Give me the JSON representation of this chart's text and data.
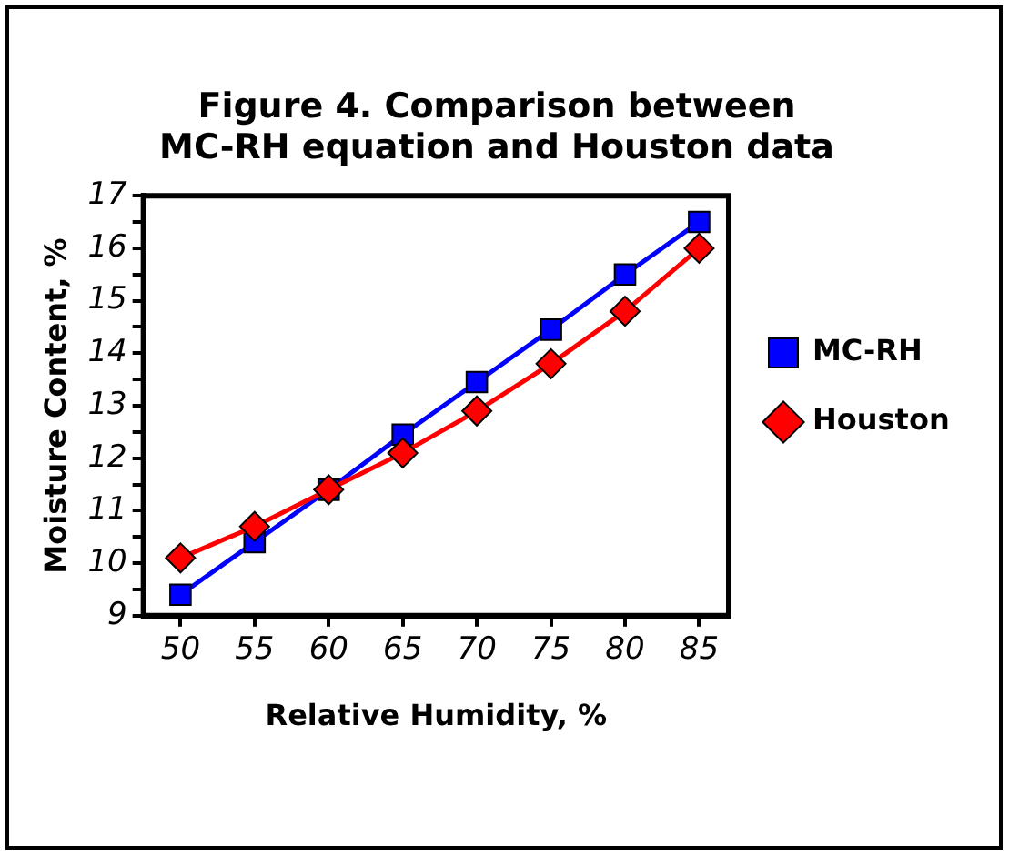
{
  "chart_data": {
    "type": "line",
    "title": "Figure 4. Comparison between MC-RH equation and Houston data",
    "xlabel": "Relative Humidity, %",
    "ylabel": "Moisture Content, %",
    "x": [
      50,
      55,
      60,
      65,
      70,
      75,
      80,
      85
    ],
    "series": [
      {
        "name": "MC-RH",
        "color": "#0000ff",
        "marker": "square",
        "values": [
          9.4,
          10.4,
          11.4,
          12.45,
          13.45,
          14.45,
          15.5,
          16.5
        ]
      },
      {
        "name": "Houston",
        "color": "#ff0000",
        "marker": "diamond",
        "values": [
          10.1,
          10.7,
          11.4,
          12.1,
          12.9,
          13.8,
          14.8,
          16.0
        ]
      }
    ],
    "xlim": [
      47.5,
      87
    ],
    "xticks": [
      50,
      55,
      60,
      65,
      70,
      75,
      80,
      85
    ],
    "ylim": [
      9,
      17
    ],
    "yticks": [
      9,
      {
        "value": 9.5,
        "label": null
      },
      10,
      {
        "value": 10.5,
        "label": null
      },
      11,
      {
        "value": 11.5,
        "label": null
      },
      12,
      {
        "value": 12.5,
        "label": null
      },
      13,
      {
        "value": 13.5,
        "label": null
      },
      14,
      {
        "value": 14.5,
        "label": null
      },
      15,
      {
        "value": 15.5,
        "label": null
      },
      16,
      {
        "value": 16.5,
        "label": null
      },
      17
    ],
    "grid": false,
    "legend": "right",
    "line_style": "solid"
  }
}
